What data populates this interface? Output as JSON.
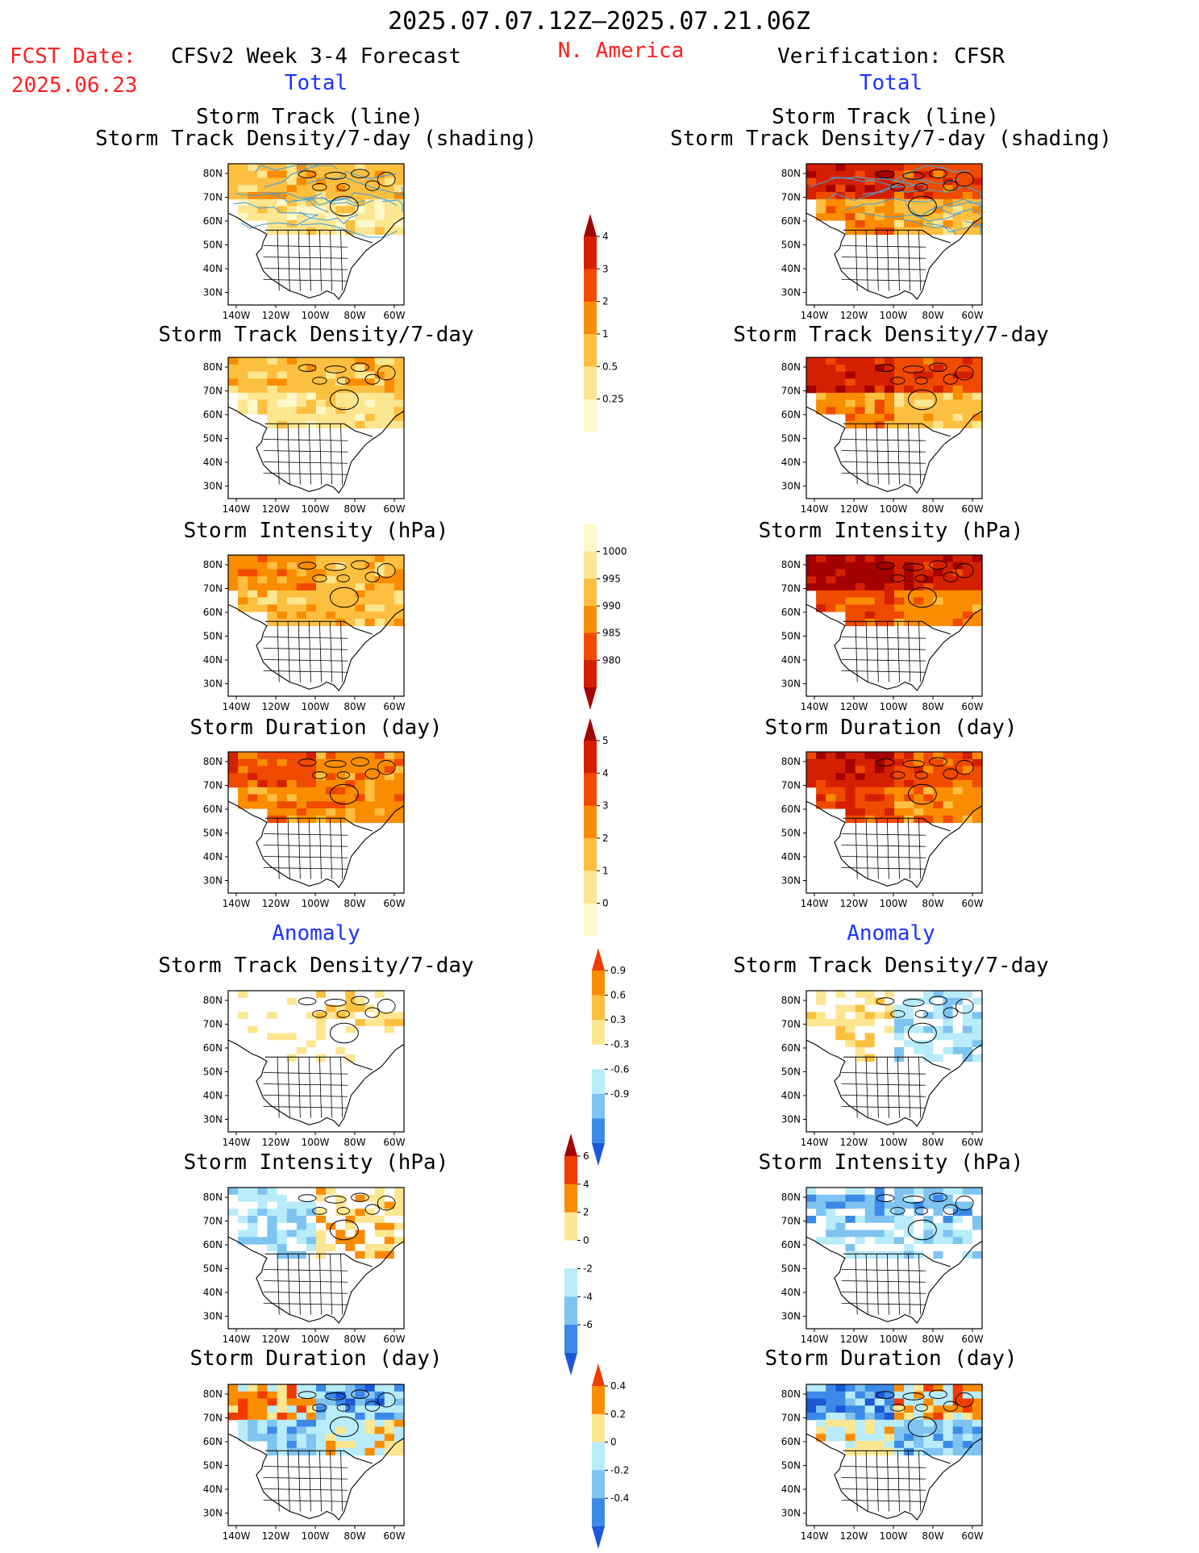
{
  "header": {
    "date_range": "2025.07.07.12Z–2025.07.21.06Z",
    "fcst_label": "FCST Date:",
    "fcst_date": "2025.06.23",
    "model_title": "CFSv2 Week 3-4 Forecast",
    "region": "N. America",
    "verification": "Verification: CFSR"
  },
  "sections": {
    "total_left": "Total",
    "total_right": "Total",
    "anomaly_left": "Anomaly",
    "anomaly_right": "Anomaly"
  },
  "panel_titles": {
    "track_line": "Storm Track (line)",
    "track_density_shading": "Storm Track Density/7-day (shading)",
    "track_density": "Storm Track Density/7-day",
    "intensity": "Storm Intensity (hPa)",
    "duration": "Storm Duration (day)"
  },
  "chart_data": {
    "type": "heatmap",
    "map_axes": {
      "lat_ticks": [
        "80N",
        "70N",
        "60N",
        "50N",
        "40N",
        "30N"
      ],
      "lon_ticks": [
        "140W",
        "120W",
        "100W",
        "80W",
        "60W"
      ]
    },
    "colorbars": [
      {
        "name": "track_density",
        "labels": [
          "4",
          "3",
          "2",
          "1",
          "0.5",
          "0.25"
        ],
        "colors": [
          "#a50000",
          "#d42000",
          "#f04a00",
          "#fa8c00",
          "#fdbf40",
          "#fde690",
          "#fff8c8"
        ]
      },
      {
        "name": "intensity",
        "labels": [
          "1000",
          "995",
          "990",
          "985",
          "980"
        ],
        "colors": [
          "#fff8c8",
          "#fde690",
          "#fdbf40",
          "#fa8c00",
          "#f04a00",
          "#d42000",
          "#a50000"
        ]
      },
      {
        "name": "duration",
        "labels": [
          "5",
          "4",
          "3",
          "2",
          "1",
          "0"
        ],
        "colors": [
          "#a50000",
          "#d42000",
          "#f04a00",
          "#fa8c00",
          "#fdbf40",
          "#fde690",
          "#fff8c8"
        ]
      },
      {
        "name": "density_anomaly",
        "labels": [
          "0.9",
          "0.6",
          "0.3",
          "-0.3",
          "-0.6",
          "-0.9"
        ],
        "colors": [
          "#f03c00",
          "#fa8c00",
          "#fdbf40",
          "#fde690",
          "#ffffff",
          "#b8ecfa",
          "#7fc4f0",
          "#3c8ae8",
          "#1a58d8"
        ]
      },
      {
        "name": "intensity_anomaly",
        "labels": [
          "6",
          "4",
          "2",
          "0",
          "-2",
          "-4",
          "-6"
        ],
        "colors": [
          "#a50000",
          "#f03c00",
          "#fa8c00",
          "#fde690",
          "#ffffff",
          "#b8ecfa",
          "#7fc4f0",
          "#3c8ae8",
          "#1a58d8"
        ]
      },
      {
        "name": "duration_anomaly",
        "labels": [
          "0.4",
          "0.2",
          "0",
          "-0.2",
          "-0.4"
        ],
        "colors": [
          "#f03c00",
          "#fa8c00",
          "#fde690",
          "#b8ecfa",
          "#7fc4f0",
          "#3c8ae8",
          "#1a58d8"
        ]
      }
    ],
    "panels": [
      {
        "id": "fc-track",
        "field": "track_density",
        "level": [
          2,
          2,
          1,
          1
        ]
      },
      {
        "id": "ob-track",
        "field": "track_density",
        "level": [
          5,
          4,
          3,
          2
        ]
      },
      {
        "id": "fc-dens",
        "field": "track_density",
        "level": [
          2,
          2,
          1,
          1
        ]
      },
      {
        "id": "ob-dens",
        "field": "track_density",
        "level": [
          5,
          4,
          3,
          2
        ]
      },
      {
        "id": "fc-int",
        "field": "intensity",
        "level": [
          2,
          1,
          1,
          1
        ]
      },
      {
        "id": "ob-int",
        "field": "intensity",
        "level": [
          5,
          4,
          3,
          2
        ]
      },
      {
        "id": "fc-dur",
        "field": "duration",
        "level": [
          4,
          3,
          3,
          3
        ]
      },
      {
        "id": "ob-dur",
        "field": "duration",
        "level": [
          5,
          4,
          4,
          3
        ]
      },
      {
        "id": "fc-dens-anom",
        "field": "density_anomaly",
        "level": [
          0,
          1,
          0,
          0
        ]
      },
      {
        "id": "ob-dens-anom",
        "field": "density_anomaly",
        "level": [
          1,
          -1,
          1,
          -1
        ]
      },
      {
        "id": "fc-int-anom",
        "field": "intensity_anomaly",
        "level": [
          -1,
          1,
          -1,
          1
        ]
      },
      {
        "id": "ob-int-anom",
        "field": "intensity_anomaly",
        "level": [
          -2,
          -2,
          -1,
          -1
        ]
      },
      {
        "id": "fc-dur-anom",
        "field": "duration_anomaly",
        "level": [
          2,
          -2,
          -1,
          1
        ]
      },
      {
        "id": "ob-dur-anom",
        "field": "duration_anomaly",
        "level": [
          -2,
          2,
          1,
          -1
        ]
      }
    ]
  }
}
